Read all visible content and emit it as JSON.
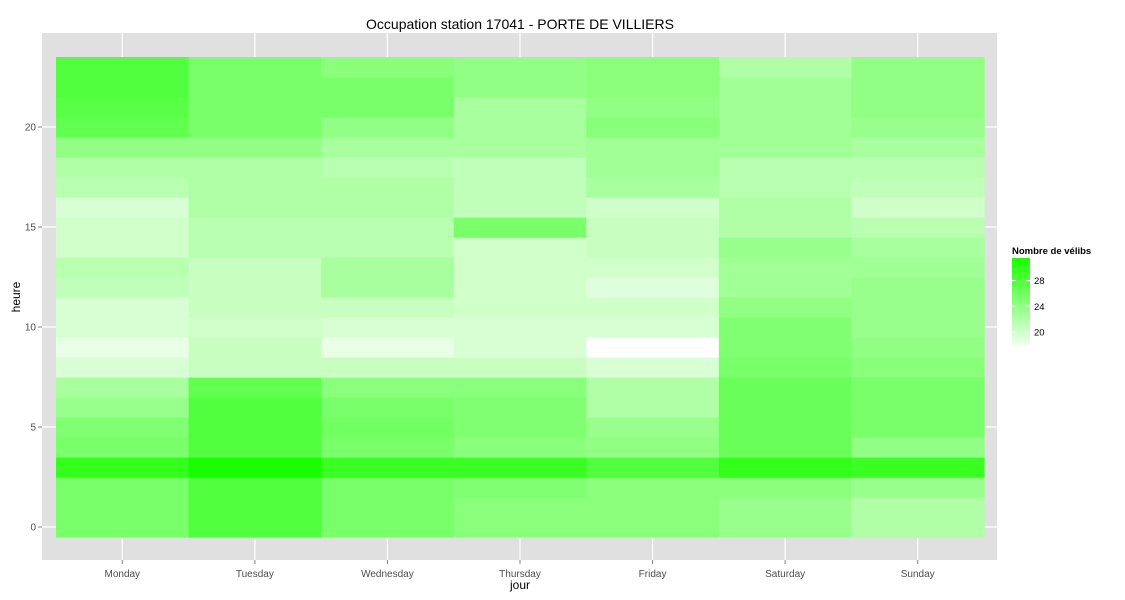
{
  "chart_data": {
    "type": "heatmap",
    "title": "Occupation station 17041 - PORTE DE VILLIERS",
    "xlabel": "jour",
    "ylabel": "heure",
    "categories": [
      "Monday",
      "Tuesday",
      "Wednesday",
      "Thursday",
      "Friday",
      "Saturday",
      "Sunday"
    ],
    "y_values": [
      0,
      1,
      2,
      3,
      4,
      5,
      6,
      7,
      8,
      9,
      10,
      11,
      12,
      13,
      14,
      15,
      16,
      17,
      18,
      19,
      20,
      21,
      22,
      23
    ],
    "y_ticks": [
      0,
      5,
      10,
      15,
      20
    ],
    "ylim": [
      -0.5,
      23.5
    ],
    "grid": true,
    "values": [
      [
        25.5,
        28,
        25.5,
        24.5,
        24.5,
        23.5,
        22
      ],
      [
        25.5,
        28,
        25.5,
        24.5,
        24.5,
        23.5,
        22
      ],
      [
        25.5,
        28,
        25.5,
        25,
        24.5,
        24.5,
        23.5
      ],
      [
        30,
        31.5,
        29.5,
        29.5,
        28,
        30,
        29.5
      ],
      [
        25.5,
        28,
        25.5,
        24.5,
        24,
        26.5,
        24
      ],
      [
        25,
        28,
        26,
        25,
        23.5,
        26.5,
        25.5
      ],
      [
        23.5,
        28,
        25.5,
        25,
        22,
        26.5,
        25.5
      ],
      [
        22.5,
        27,
        24.5,
        24.5,
        22,
        26.5,
        25.5
      ],
      [
        19.5,
        20.5,
        20.5,
        20.5,
        19.5,
        25.5,
        24.5
      ],
      [
        18.5,
        20.5,
        18.5,
        19.5,
        17,
        25,
        24
      ],
      [
        19.5,
        20,
        19.5,
        19.5,
        19.5,
        25,
        23.5
      ],
      [
        19.5,
        20.5,
        20.5,
        20,
        20,
        24,
        23.5
      ],
      [
        21,
        20.5,
        22.5,
        20,
        19,
        23,
        23.5
      ],
      [
        21.5,
        20.5,
        22.5,
        20,
        20,
        23,
        23
      ],
      [
        20,
        21.5,
        21.5,
        20,
        20.5,
        23.5,
        22.5
      ],
      [
        20,
        21.5,
        21.5,
        25.5,
        20.5,
        22,
        21.5
      ],
      [
        19.5,
        22,
        22,
        21,
        20,
        22,
        20
      ],
      [
        21.5,
        22,
        22,
        21,
        22.5,
        21.5,
        21
      ],
      [
        22,
        22,
        21.5,
        21,
        23,
        21.5,
        21.5
      ],
      [
        24,
        24,
        22.5,
        22.5,
        23,
        23,
        22.5
      ],
      [
        27,
        25.5,
        24,
        22.5,
        24.5,
        23,
        23.5
      ],
      [
        27.5,
        25.5,
        25.5,
        22.5,
        24,
        23,
        24
      ],
      [
        28,
        25.5,
        25.5,
        24,
        24.5,
        23,
        24
      ],
      [
        28,
        25.5,
        24.5,
        24,
        24.5,
        22,
        24
      ]
    ],
    "color_scale": {
      "low_color": "#ffffff",
      "high_color": "#1aff00",
      "min": 17,
      "max": 31.5
    },
    "legend": {
      "title": "Nombre de vélibs",
      "ticks": [
        20,
        24,
        28
      ],
      "placement": "right"
    },
    "panel_background": "#e0e0e0",
    "grid_color": "#ffffff"
  }
}
